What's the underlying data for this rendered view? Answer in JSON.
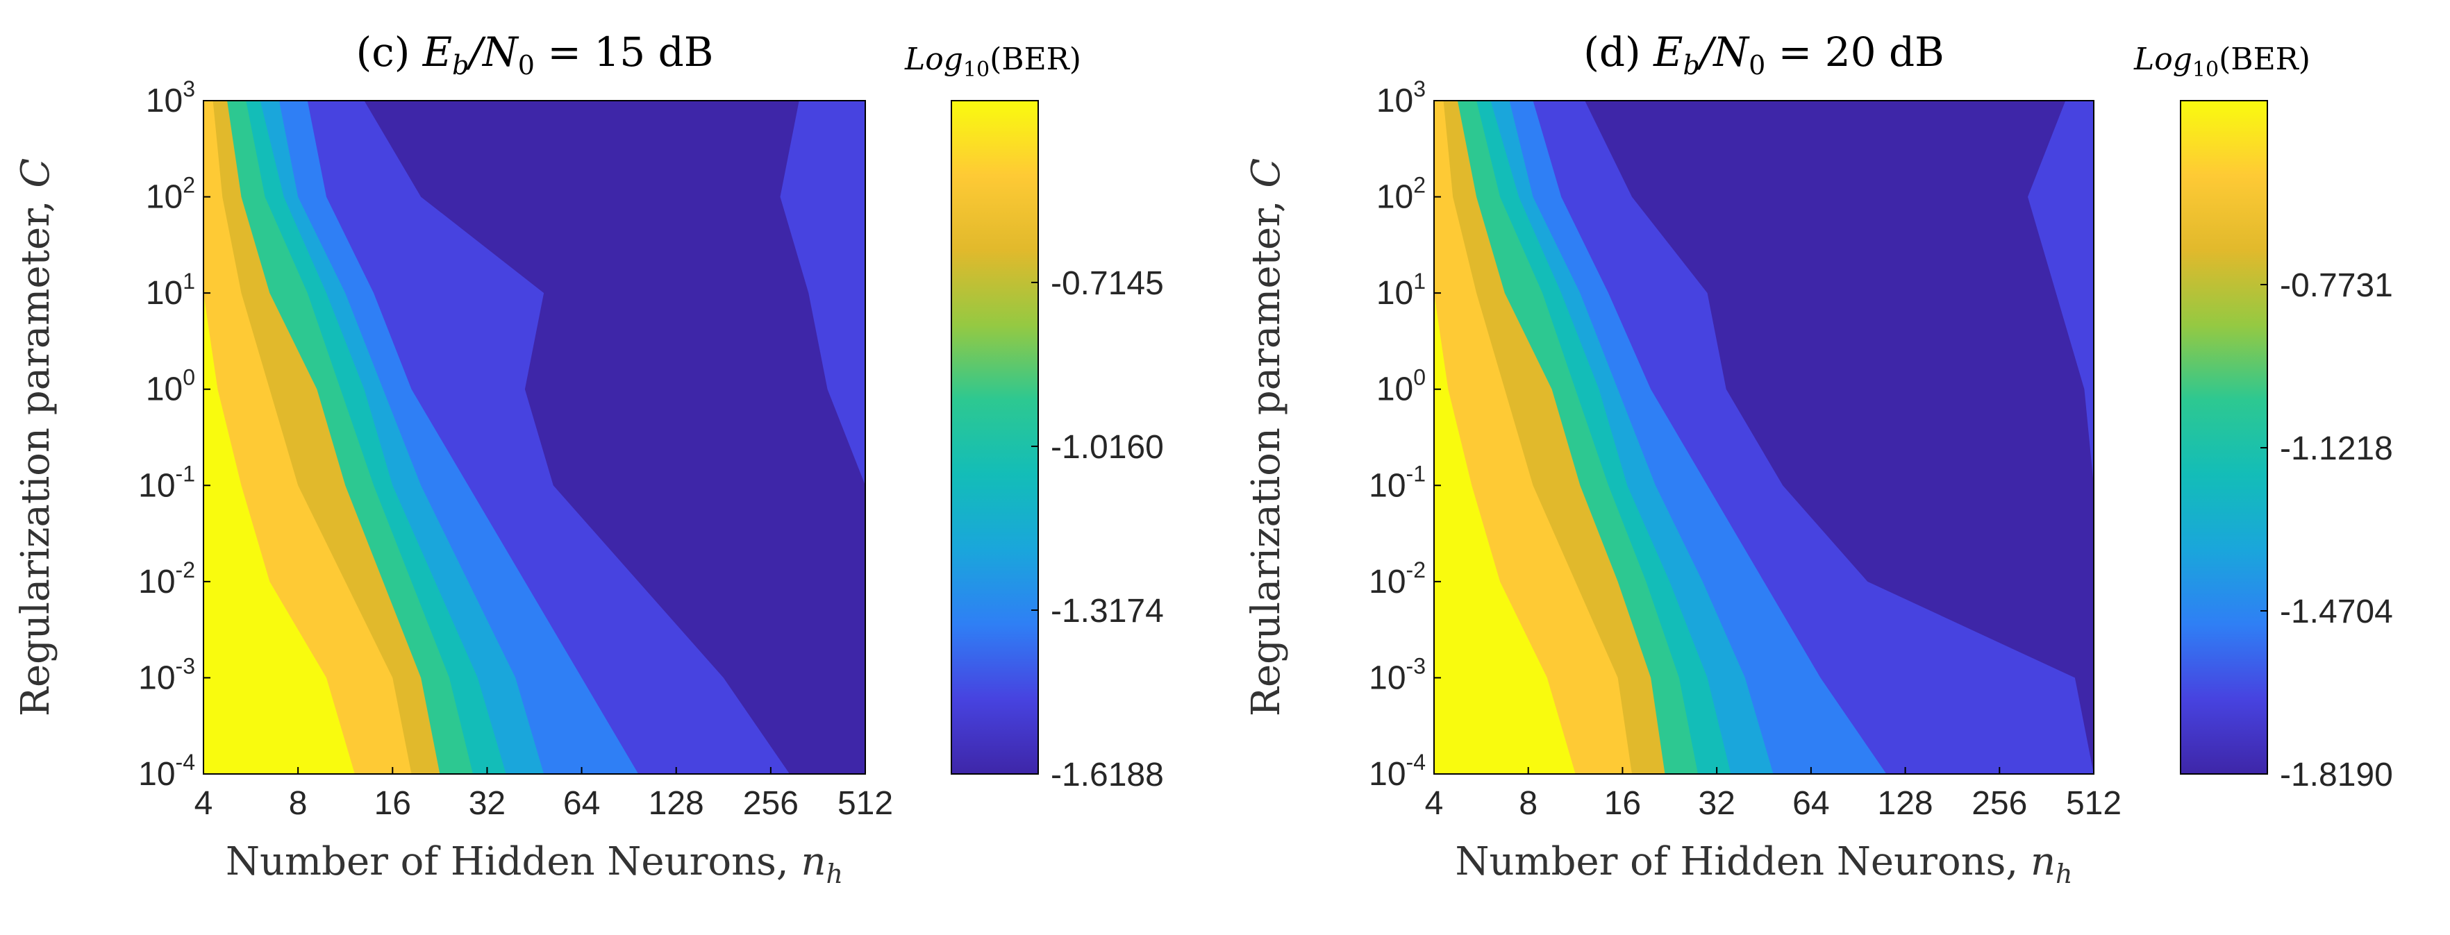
{
  "figure": {
    "colormap": [
      "#3e26a8",
      "#4743e0",
      "#2f7ff5",
      "#1aa6db",
      "#13bdb8",
      "#2dc891",
      "#95c942",
      "#e1b92c",
      "#feca35",
      "#f9fb0e"
    ],
    "colors": {
      "axis": "#000000",
      "background": "#ffffff",
      "tick_text": "#262626"
    }
  },
  "chart_data": [
    {
      "type": "heatmap",
      "panel": "(c)",
      "title_prefix": "(c)",
      "title_math_lhs": "E",
      "title_math_sub1": "b",
      "title_math_slash": "/N",
      "title_math_sub2": "0",
      "title_math_rest": " = 15 dB",
      "xlabel": "Number of Hidden Neurons, ",
      "xlabel_math": "n",
      "xlabel_math_sub": "h",
      "ylabel": "Regularization parameter, ",
      "ylabel_math": "C",
      "x_ticks": [
        "4",
        "8",
        "16",
        "32",
        "64",
        "128",
        "256",
        "512"
      ],
      "x_log2": [
        2,
        3,
        4,
        5,
        6,
        7,
        8,
        9
      ],
      "y_exponents": [
        3,
        2,
        1,
        0,
        -1,
        -2,
        -3,
        -4
      ],
      "y_tick_base": "10",
      "colorbar_label_main": "Log",
      "colorbar_label_sub": "10",
      "colorbar_label_rest": "(BER)",
      "colorbar_range": [
        -1.6188,
        -0.38
      ],
      "colorbar_ticks": [
        "-0.7145",
        "-1.0160",
        "-1.3174",
        "-1.6188"
      ],
      "colorbar_tick_values": [
        -0.7145,
        -1.016,
        -1.3174,
        -1.6188
      ],
      "z_min": -1.6188,
      "z_max": -0.38,
      "region_boundaries_log2": {
        "comment": "approximate contour boundaries: x position (log2 n_h) per row of log10 C",
        "rows_log10C": [
          3,
          2,
          1,
          0,
          -1,
          -2,
          -3,
          -4
        ],
        "b_yellow": [
          2.0,
          2.0,
          2.0,
          2.15,
          2.4,
          2.7,
          3.3,
          3.6
        ],
        "b_gold": [
          2.1,
          2.2,
          2.4,
          2.7,
          3.0,
          3.5,
          4.0,
          4.2
        ],
        "b_orange": [
          2.25,
          2.4,
          2.7,
          3.2,
          3.5,
          3.9,
          4.3,
          4.5
        ],
        "b_green": [
          2.45,
          2.65,
          3.1,
          3.45,
          3.8,
          4.2,
          4.6,
          4.85
        ],
        "b_teal": [
          2.6,
          2.85,
          3.3,
          3.7,
          4.0,
          4.45,
          4.9,
          5.2
        ],
        "b_cyan": [
          2.8,
          3.0,
          3.5,
          3.9,
          4.3,
          4.8,
          5.3,
          5.6
        ],
        "b_blue": [
          3.1,
          3.3,
          3.8,
          4.2,
          4.8,
          5.4,
          6.0,
          6.6
        ],
        "b_dark": [
          3.7,
          4.3,
          5.6,
          5.4,
          5.7,
          6.6,
          7.5,
          8.2
        ]
      },
      "secondary_region": {
        "comment": "mid-blue band at upper right (log2 n_h start per row)",
        "rows_log10C": [
          3,
          2,
          1,
          0,
          -1
        ],
        "start": [
          8.3,
          8.1,
          8.4,
          8.6,
          9.0
        ]
      }
    },
    {
      "type": "heatmap",
      "panel": "(d)",
      "title_prefix": "(d)",
      "title_math_lhs": "E",
      "title_math_sub1": "b",
      "title_math_slash": "/N",
      "title_math_sub2": "0",
      "title_math_rest": " = 20 dB",
      "xlabel": "Number of Hidden Neurons, ",
      "xlabel_math": "n",
      "xlabel_math_sub": "h",
      "ylabel": "Regularization parameter, ",
      "ylabel_math": "C",
      "x_ticks": [
        "4",
        "8",
        "16",
        "32",
        "64",
        "128",
        "256",
        "512"
      ],
      "x_log2": [
        2,
        3,
        4,
        5,
        6,
        7,
        8,
        9
      ],
      "y_exponents": [
        3,
        2,
        1,
        0,
        -1,
        -2,
        -3,
        -4
      ],
      "y_tick_base": "10",
      "colorbar_label_main": "Log",
      "colorbar_label_sub": "10",
      "colorbar_label_rest": "(BER)",
      "colorbar_range": [
        -1.819,
        -0.38
      ],
      "colorbar_ticks": [
        "-0.7731",
        "-1.1218",
        "-1.4704",
        "-1.8190"
      ],
      "colorbar_tick_values": [
        -0.7731,
        -1.1218,
        -1.4704,
        -1.819
      ],
      "z_min": -1.819,
      "z_max": -0.38,
      "region_boundaries_log2": {
        "comment": "approximate contour boundaries: x position (log2 n_h) per row of log10 C",
        "rows_log10C": [
          3,
          2,
          1,
          0,
          -1,
          -2,
          -3,
          -4
        ],
        "b_yellow": [
          2.0,
          2.0,
          2.0,
          2.15,
          2.4,
          2.7,
          3.2,
          3.5
        ],
        "b_gold": [
          2.1,
          2.2,
          2.45,
          2.75,
          3.05,
          3.5,
          3.95,
          4.1
        ],
        "b_orange": [
          2.25,
          2.45,
          2.75,
          3.25,
          3.55,
          3.95,
          4.3,
          4.45
        ],
        "b_green": [
          2.45,
          2.7,
          3.15,
          3.5,
          3.85,
          4.25,
          4.6,
          4.8
        ],
        "b_teal": [
          2.6,
          2.9,
          3.35,
          3.75,
          4.05,
          4.5,
          4.9,
          5.15
        ],
        "b_cyan": [
          2.8,
          3.05,
          3.55,
          3.95,
          4.35,
          4.85,
          5.3,
          5.6
        ],
        "b_blue": [
          3.05,
          3.35,
          3.85,
          4.3,
          4.9,
          5.5,
          6.1,
          6.8
        ],
        "b_dark": [
          3.6,
          4.1,
          4.9,
          5.1,
          5.7,
          6.6,
          8.8,
          9.0
        ]
      },
      "secondary_region": {
        "comment": "mid-blue band at upper right (log2 n_h start per row)",
        "rows_log10C": [
          3,
          2,
          1,
          0,
          -1
        ],
        "start": [
          8.7,
          8.3,
          8.6,
          8.9,
          9.0
        ]
      }
    }
  ]
}
